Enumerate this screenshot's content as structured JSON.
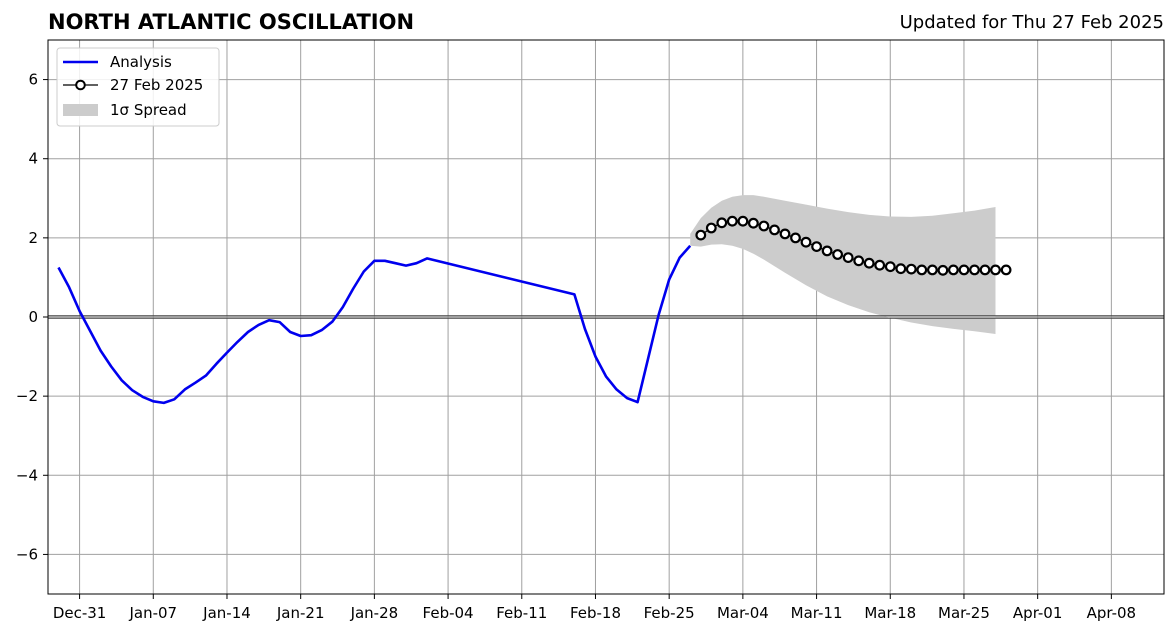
{
  "header": {
    "title": "NORTH ATLANTIC OSCILLATION",
    "updated": "Updated for Thu 27 Feb 2025"
  },
  "chart_data": {
    "type": "line",
    "title": "NORTH ATLANTIC OSCILLATION",
    "xlabel": "",
    "ylabel": "",
    "x_axis": "date",
    "xlim": [
      "2024-12-28",
      "2025-04-13"
    ],
    "ylim": [
      -7,
      7
    ],
    "x_ticks": [
      {
        "date": "2024-12-31",
        "label": "Dec-31"
      },
      {
        "date": "2025-01-07",
        "label": "Jan-07"
      },
      {
        "date": "2025-01-14",
        "label": "Jan-14"
      },
      {
        "date": "2025-01-21",
        "label": "Jan-21"
      },
      {
        "date": "2025-01-28",
        "label": "Jan-28"
      },
      {
        "date": "2025-02-04",
        "label": "Feb-04"
      },
      {
        "date": "2025-02-11",
        "label": "Feb-11"
      },
      {
        "date": "2025-02-18",
        "label": "Feb-18"
      },
      {
        "date": "2025-02-25",
        "label": "Feb-25"
      },
      {
        "date": "2025-03-04",
        "label": "Mar-04"
      },
      {
        "date": "2025-03-11",
        "label": "Mar-11"
      },
      {
        "date": "2025-03-18",
        "label": "Mar-18"
      },
      {
        "date": "2025-03-25",
        "label": "Mar-25"
      },
      {
        "date": "2025-04-01",
        "label": "Apr-01"
      },
      {
        "date": "2025-04-08",
        "label": "Apr-08"
      }
    ],
    "y_ticks": [
      {
        "value": -6,
        "label": "−6"
      },
      {
        "value": -4,
        "label": "−4"
      },
      {
        "value": -2,
        "label": "−2"
      },
      {
        "value": 0,
        "label": "0"
      },
      {
        "value": 2,
        "label": "2"
      },
      {
        "value": 4,
        "label": "4"
      },
      {
        "value": 6,
        "label": "6"
      }
    ],
    "grid": true,
    "zero_line": true,
    "legend": {
      "placement": "top-left",
      "entries": [
        {
          "label": "Analysis",
          "color": "#0000ee",
          "style": "line"
        },
        {
          "label": "27 Feb 2025",
          "color": "#000000",
          "style": "line-marker"
        },
        {
          "label": "1σ Spread",
          "color": "#cccccc",
          "style": "patch"
        }
      ]
    },
    "series": [
      {
        "name": "Analysis",
        "color": "#0000ee",
        "points": [
          [
            "2024-12-29",
            1.25
          ],
          [
            "2024-12-30",
            0.75
          ],
          [
            "2024-12-31",
            0.15
          ],
          [
            "2025-01-01",
            -0.35
          ],
          [
            "2025-01-02",
            -0.85
          ],
          [
            "2025-01-03",
            -1.25
          ],
          [
            "2025-01-04",
            -1.6
          ],
          [
            "2025-01-05",
            -1.85
          ],
          [
            "2025-01-06",
            -2.02
          ],
          [
            "2025-01-07",
            -2.13
          ],
          [
            "2025-01-08",
            -2.17
          ],
          [
            "2025-01-09",
            -2.08
          ],
          [
            "2025-01-10",
            -1.83
          ],
          [
            "2025-01-11",
            -1.66
          ],
          [
            "2025-01-12",
            -1.48
          ],
          [
            "2025-01-13",
            -1.18
          ],
          [
            "2025-01-14",
            -0.9
          ],
          [
            "2025-01-15",
            -0.63
          ],
          [
            "2025-01-16",
            -0.38
          ],
          [
            "2025-01-17",
            -0.2
          ],
          [
            "2025-01-18",
            -0.08
          ],
          [
            "2025-01-19",
            -0.13
          ],
          [
            "2025-01-20",
            -0.38
          ],
          [
            "2025-01-21",
            -0.48
          ],
          [
            "2025-01-22",
            -0.46
          ],
          [
            "2025-01-23",
            -0.33
          ],
          [
            "2025-01-24",
            -0.12
          ],
          [
            "2025-01-25",
            0.25
          ],
          [
            "2025-01-26",
            0.72
          ],
          [
            "2025-01-27",
            1.15
          ],
          [
            "2025-01-28",
            1.42
          ],
          [
            "2025-01-29",
            1.42
          ],
          [
            "2025-01-30",
            1.36
          ],
          [
            "2025-01-31",
            1.3
          ],
          [
            "2025-02-01",
            1.36
          ],
          [
            "2025-02-02",
            1.48
          ],
          [
            "2025-02-16",
            0.57
          ],
          [
            "2025-02-17",
            -0.3
          ],
          [
            "2025-02-18",
            -1.0
          ],
          [
            "2025-02-19",
            -1.5
          ],
          [
            "2025-02-20",
            -1.83
          ],
          [
            "2025-02-21",
            -2.05
          ],
          [
            "2025-02-22",
            -2.15
          ],
          [
            "2025-02-23",
            -1.05
          ],
          [
            "2025-02-24",
            0.05
          ],
          [
            "2025-02-25",
            0.95
          ],
          [
            "2025-02-26",
            1.5
          ],
          [
            "2025-02-27",
            1.8
          ]
        ]
      },
      {
        "name": "27 Feb 2025",
        "color": "#000000",
        "start": "2025-02-28",
        "values": [
          2.07,
          2.25,
          2.38,
          2.42,
          2.42,
          2.37,
          2.3,
          2.2,
          2.1,
          2.0,
          1.89,
          1.78,
          1.67,
          1.58,
          1.5,
          1.42,
          1.36,
          1.31,
          1.27,
          1.22,
          1.21,
          1.19,
          1.19,
          1.18,
          1.19,
          1.19,
          1.19,
          1.19,
          1.19,
          1.19
        ]
      }
    ],
    "spread": {
      "name": "1σ Spread",
      "color": "#cccccc",
      "upper": [
        [
          "2025-02-27",
          2.1
        ],
        [
          "2025-02-28",
          2.5
        ],
        [
          "2025-03-01",
          2.76
        ],
        [
          "2025-03-02",
          2.94
        ],
        [
          "2025-03-03",
          3.04
        ],
        [
          "2025-03-04",
          3.08
        ],
        [
          "2025-03-05",
          3.08
        ],
        [
          "2025-03-06",
          3.04
        ],
        [
          "2025-03-08",
          2.94
        ],
        [
          "2025-03-10",
          2.84
        ],
        [
          "2025-03-12",
          2.74
        ],
        [
          "2025-03-14",
          2.65
        ],
        [
          "2025-03-16",
          2.58
        ],
        [
          "2025-03-18",
          2.54
        ],
        [
          "2025-03-20",
          2.53
        ],
        [
          "2025-03-22",
          2.56
        ],
        [
          "2025-03-24",
          2.62
        ],
        [
          "2025-03-26",
          2.69
        ],
        [
          "2025-03-28",
          2.78
        ]
      ],
      "lower": [
        [
          "2025-02-27",
          1.8
        ],
        [
          "2025-02-28",
          1.78
        ],
        [
          "2025-03-01",
          1.83
        ],
        [
          "2025-03-02",
          1.84
        ],
        [
          "2025-03-03",
          1.8
        ],
        [
          "2025-03-04",
          1.72
        ],
        [
          "2025-03-05",
          1.6
        ],
        [
          "2025-03-06",
          1.45
        ],
        [
          "2025-03-08",
          1.12
        ],
        [
          "2025-03-10",
          0.8
        ],
        [
          "2025-03-12",
          0.52
        ],
        [
          "2025-03-14",
          0.3
        ],
        [
          "2025-03-16",
          0.12
        ],
        [
          "2025-03-18",
          -0.02
        ],
        [
          "2025-03-20",
          -0.14
        ],
        [
          "2025-03-22",
          -0.23
        ],
        [
          "2025-03-24",
          -0.3
        ],
        [
          "2025-03-26",
          -0.36
        ],
        [
          "2025-03-28",
          -0.43
        ]
      ]
    }
  }
}
